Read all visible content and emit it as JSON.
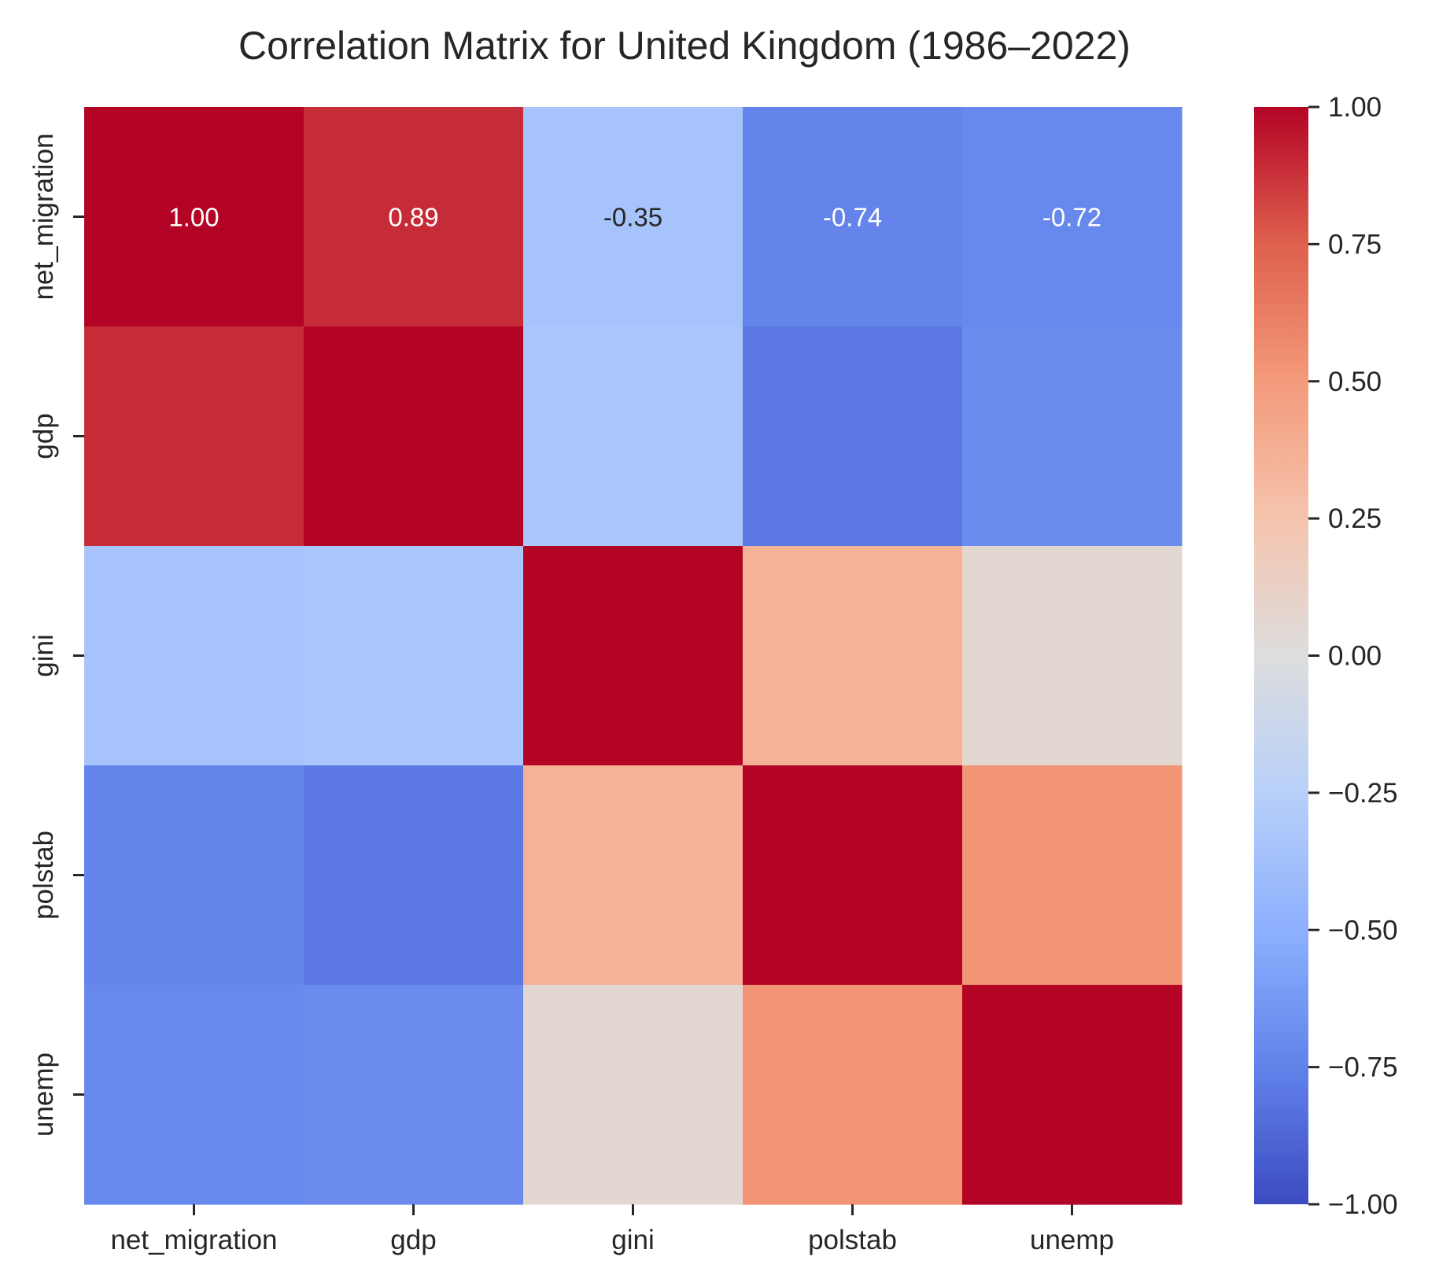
{
  "chart_data": {
    "type": "heatmap",
    "title": "Correlation Matrix for United Kingdom (1986–2022)",
    "row_labels": [
      "net_migration",
      "gdp",
      "gini",
      "polstab",
      "unemp"
    ],
    "col_labels": [
      "net_migration",
      "gdp",
      "gini",
      "polstab",
      "unemp"
    ],
    "values": [
      [
        1.0,
        0.89,
        -0.35,
        -0.74,
        -0.72
      ],
      [
        0.89,
        1.0,
        -0.33,
        -0.79,
        -0.7
      ],
      [
        -0.35,
        -0.33,
        1.0,
        0.36,
        0.06
      ],
      [
        -0.74,
        -0.79,
        0.36,
        1.0,
        0.52
      ],
      [
        -0.72,
        -0.7,
        0.06,
        0.52,
        1.0
      ]
    ],
    "annotations": [
      {
        "row": 0,
        "col": 0,
        "text": "1.00"
      },
      {
        "row": 0,
        "col": 1,
        "text": "0.89"
      },
      {
        "row": 0,
        "col": 2,
        "text": "-0.35"
      },
      {
        "row": 0,
        "col": 3,
        "text": "-0.74"
      },
      {
        "row": 0,
        "col": 4,
        "text": "-0.72"
      }
    ],
    "colormap": "coolwarm",
    "vmin": -1.0,
    "vmax": 1.0,
    "colorbar_ticks": [
      1.0,
      0.75,
      0.5,
      0.25,
      0.0,
      -0.25,
      -0.5,
      -0.75,
      -1.0
    ],
    "colorbar_tick_labels": [
      "1.00",
      "0.75",
      "0.50",
      "0.25",
      "0.00",
      "−0.25",
      "−0.50",
      "−0.75",
      "−1.00"
    ],
    "colorbar_position": "right"
  }
}
